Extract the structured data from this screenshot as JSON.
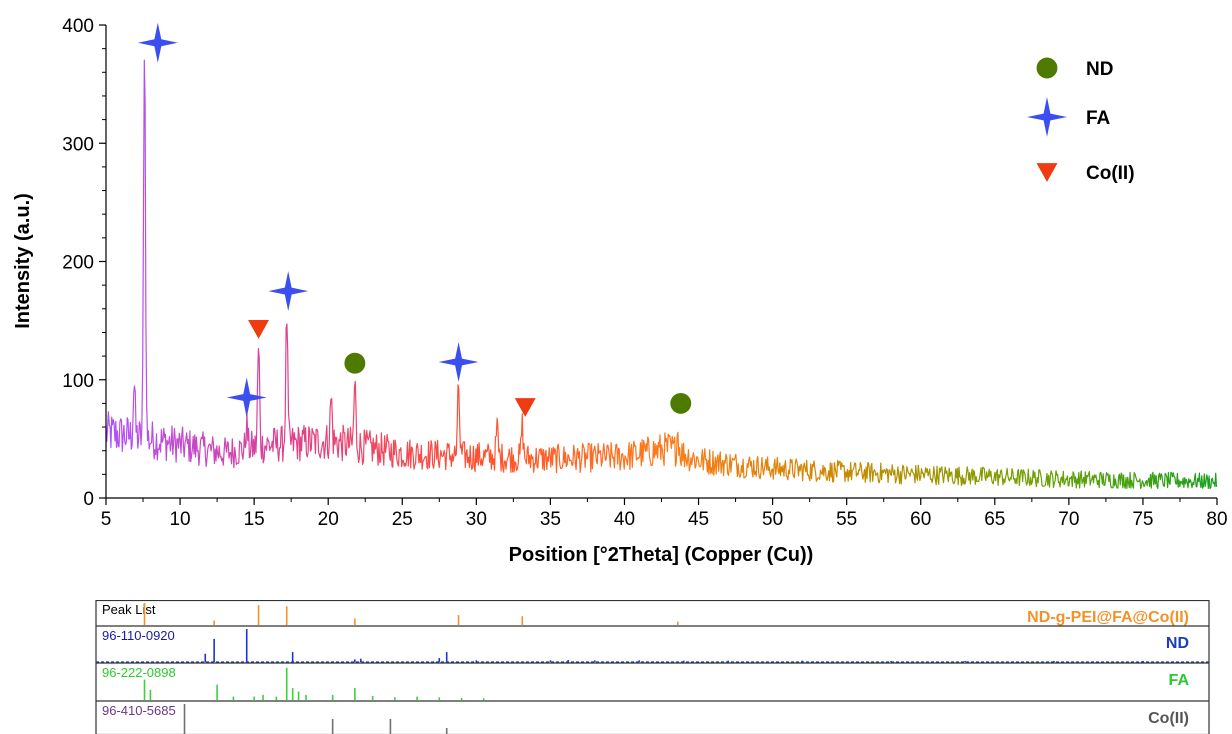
{
  "chart_data": {
    "type": "line",
    "xlabel": "Position [°2Theta] (Copper (Cu))",
    "ylabel": "Intensity (a.u.)",
    "xlim": [
      5,
      80
    ],
    "ylim": [
      0,
      400
    ],
    "x_ticks": [
      5,
      10,
      15,
      20,
      25,
      30,
      35,
      40,
      45,
      50,
      55,
      60,
      65,
      70,
      75,
      80
    ],
    "y_ticks": [
      0,
      100,
      200,
      300,
      400
    ],
    "gradient_colors": [
      "#b050ff",
      "#e0408a",
      "#ff5030",
      "#ff7a1a",
      "#c88a00",
      "#70a000",
      "#1aa020"
    ],
    "baseline": [
      [
        5,
        55
      ],
      [
        7,
        52
      ],
      [
        10,
        45
      ],
      [
        13,
        38
      ],
      [
        16,
        45
      ],
      [
        20,
        48
      ],
      [
        25,
        38
      ],
      [
        30,
        35
      ],
      [
        35,
        33
      ],
      [
        40,
        35
      ],
      [
        43,
        42
      ],
      [
        45,
        32
      ],
      [
        50,
        25
      ],
      [
        55,
        22
      ],
      [
        60,
        20
      ],
      [
        65,
        18
      ],
      [
        70,
        16
      ],
      [
        75,
        15
      ],
      [
        80,
        14
      ]
    ],
    "peaks": [
      {
        "x": 6.9,
        "y": 98
      },
      {
        "x": 7.6,
        "y": 393
      },
      {
        "x": 14.5,
        "y": 62
      },
      {
        "x": 15.3,
        "y": 128
      },
      {
        "x": 17.2,
        "y": 155
      },
      {
        "x": 20.2,
        "y": 85
      },
      {
        "x": 21.8,
        "y": 98
      },
      {
        "x": 28.8,
        "y": 94
      },
      {
        "x": 31.4,
        "y": 60
      },
      {
        "x": 33.1,
        "y": 62
      },
      {
        "x": 43.6,
        "y": 56
      }
    ],
    "markers": [
      {
        "series": "ND",
        "x": 21.8,
        "y": 114
      },
      {
        "series": "ND",
        "x": 43.8,
        "y": 80
      },
      {
        "series": "FA",
        "x": 8.5,
        "y": 385
      },
      {
        "series": "FA",
        "x": 14.5,
        "y": 85
      },
      {
        "series": "FA",
        "x": 17.3,
        "y": 175
      },
      {
        "series": "FA",
        "x": 28.8,
        "y": 115
      },
      {
        "series": "Co(II)",
        "x": 15.3,
        "y": 143
      },
      {
        "series": "Co(II)",
        "x": 33.3,
        "y": 77
      }
    ],
    "legend": {
      "placement": "top-right",
      "entries": [
        {
          "name": "ND",
          "marker": "circle",
          "color": "#4f7a00"
        },
        {
          "name": "FA",
          "marker": "star",
          "color": "#3b4ef0"
        },
        {
          "name": "Co(II)",
          "marker": "triangle-down",
          "color": "#f03a10"
        }
      ]
    }
  },
  "reference_panels": [
    {
      "code": "Peak List",
      "name": "ND-g-PEI@FA@Co(II)",
      "code_color": "#000000",
      "name_color": "#f4922a",
      "line_color": "#f4922a",
      "lines": [
        [
          7.6,
          1.0
        ],
        [
          12.3,
          0.2
        ],
        [
          15.3,
          0.9
        ],
        [
          17.2,
          0.85
        ],
        [
          21.8,
          0.3
        ],
        [
          28.8,
          0.45
        ],
        [
          33.1,
          0.4
        ],
        [
          43.6,
          0.15
        ]
      ]
    },
    {
      "code": "96-110-0920",
      "name": "ND",
      "code_color": "#1a1aa0",
      "name_color": "#1a3cc0",
      "line_color": "#1a34d8",
      "lines": [
        [
          11.7,
          0.25
        ],
        [
          12.3,
          0.7
        ],
        [
          14.5,
          1.0
        ],
        [
          17.6,
          0.3
        ],
        [
          21.8,
          0.08
        ],
        [
          22.2,
          0.1
        ],
        [
          27.5,
          0.12
        ],
        [
          28.0,
          0.3
        ],
        [
          30.0,
          0.05
        ],
        [
          35.0,
          0.05
        ],
        [
          36.2,
          0.06
        ],
        [
          38.0,
          0.05
        ],
        [
          41.0,
          0.05
        ],
        [
          44.0,
          0.04
        ],
        [
          47.0,
          0.04
        ],
        [
          52.0,
          0.04
        ],
        [
          58.0,
          0.03
        ],
        [
          63.0,
          0.03
        ],
        [
          69.0,
          0.03
        ],
        [
          75.0,
          0.03
        ]
      ]
    },
    {
      "code": "96-222-0898",
      "name": "FA",
      "code_color": "#2ec82e",
      "name_color": "#2ec82e",
      "line_color": "#3ad23a",
      "lines": [
        [
          7.6,
          0.6
        ],
        [
          8.0,
          0.3
        ],
        [
          12.5,
          0.45
        ],
        [
          13.6,
          0.1
        ],
        [
          15.0,
          0.1
        ],
        [
          15.6,
          0.15
        ],
        [
          16.5,
          0.1
        ],
        [
          17.2,
          0.95
        ],
        [
          17.6,
          0.35
        ],
        [
          18.0,
          0.25
        ],
        [
          18.5,
          0.15
        ],
        [
          20.3,
          0.15
        ],
        [
          21.8,
          0.35
        ],
        [
          23.0,
          0.12
        ],
        [
          24.5,
          0.08
        ],
        [
          26.0,
          0.1
        ],
        [
          27.5,
          0.08
        ],
        [
          29.0,
          0.06
        ],
        [
          30.5,
          0.05
        ]
      ]
    },
    {
      "code": "96-410-5685",
      "name": "Co(II)",
      "code_color": "#6a3a8a",
      "name_color": "#555555",
      "line_color": "#707070",
      "lines": [
        [
          10.3,
          1.0
        ],
        [
          20.3,
          0.5
        ],
        [
          24.2,
          0.5
        ],
        [
          28.0,
          0.2
        ]
      ]
    }
  ]
}
